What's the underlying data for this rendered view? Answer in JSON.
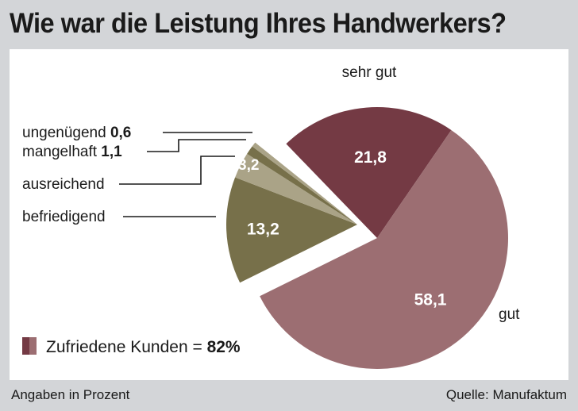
{
  "chart_data": {
    "type": "pie",
    "title": "Wie war die Leistung Ihres Handwerkers?",
    "unit_note": "Angaben in Prozent",
    "source": "Quelle: Manufaktum",
    "slices": [
      {
        "label": "sehr gut",
        "value": 21.8,
        "value_label": "21,8",
        "color": "#743a44",
        "exploded": false
      },
      {
        "label": "gut",
        "value": 58.1,
        "value_label": "58,1",
        "color": "#9c6e72",
        "exploded": false
      },
      {
        "label": "befriedigend",
        "value": 13.2,
        "value_label": "13,2",
        "color": "#77704a",
        "exploded": true
      },
      {
        "label": "ausreichend",
        "value": 3.2,
        "value_label": "3,2",
        "color": "#aaa387",
        "exploded": true
      },
      {
        "label": "mangelhaft",
        "value": 1.1,
        "value_label": "1,1",
        "color": "#77704a",
        "exploded": true
      },
      {
        "label": "ungenügend",
        "value": 0.6,
        "value_label": "0,6",
        "color": "#aaa387",
        "exploded": true
      }
    ],
    "legend": {
      "text": "Zufriedene Kunden = ",
      "value": "82%",
      "colors": [
        "#743a44",
        "#9c6e72"
      ]
    }
  }
}
